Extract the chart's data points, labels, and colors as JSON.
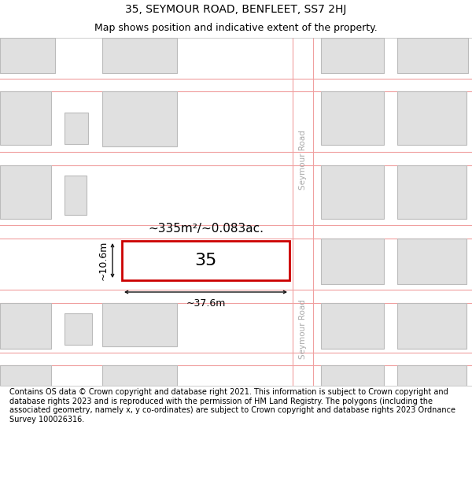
{
  "title": "35, SEYMOUR ROAD, BENFLEET, SS7 2HJ",
  "subtitle": "Map shows position and indicative extent of the property.",
  "footer": "Contains OS data © Crown copyright and database right 2021. This information is subject to Crown copyright and database rights 2023 and is reproduced with the permission of HM Land Registry. The polygons (including the associated geometry, namely x, y co-ordinates) are subject to Crown copyright and database rights 2023 Ordnance Survey 100026316.",
  "bg_color": "#ffffff",
  "map_bg": "#f0f0f0",
  "block_fill": "#e0e0e0",
  "block_edge": "#bbbbbb",
  "plot_outline_color": "#cc0000",
  "road_line_color": "#f0a0a0",
  "dim_line_color": "#111111",
  "road_text_color": "#aaaaaa",
  "area_text": "~335m²/~0.083ac.",
  "width_text": "~37.6m",
  "height_text": "~10.6m",
  "number_text": "35",
  "title_fontsize": 10,
  "subtitle_fontsize": 9,
  "footer_fontsize": 7
}
